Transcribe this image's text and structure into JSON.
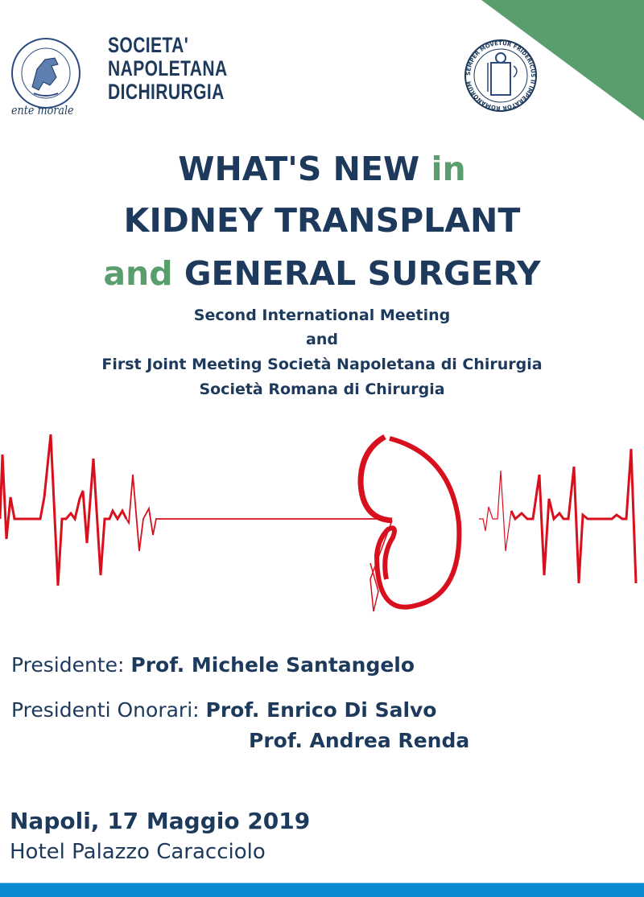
{
  "header": {
    "left_logo_caption": "ente morale",
    "left_logo_ring_text": "SOCIETA NAPOLETANA DI CHIRURGIA",
    "society_name_lines": [
      "SOCIETA'",
      "NAPOLETANA",
      "DICHIRURGIA"
    ],
    "right_seal_text": "SEMPER MOVETUR FRIDERICUS II IMPERATOR ROMANORUM",
    "accent_green": "#5b9e6e"
  },
  "title": {
    "line1_main": "WHAT'S NEW ",
    "line1_accent": "in",
    "line2": "KIDNEY TRANSPLANT",
    "line3_accent": "and",
    "line3_main": " GENERAL SURGERY"
  },
  "subtitle": [
    "Second International Meeting",
    "and",
    "First Joint Meeting Società Napoletana di Chirurgia",
    "Società Romana di Chirurgia"
  ],
  "graphic": {
    "icon": "kidney-ecg-icon",
    "color": "#d8101e"
  },
  "presidents": {
    "president_label": "Presidente:",
    "president_name": "Prof. Michele Santangelo",
    "honorary_label": "Presidenti Onorari:",
    "honorary_names": [
      "Prof. Enrico Di Salvo",
      "Prof. Andrea Renda"
    ]
  },
  "event": {
    "date_line": "Napoli, 17 Maggio 2019",
    "venue": "Hotel Palazzo Caracciolo"
  },
  "footer": {
    "bar_color": "#0a8ad0"
  }
}
